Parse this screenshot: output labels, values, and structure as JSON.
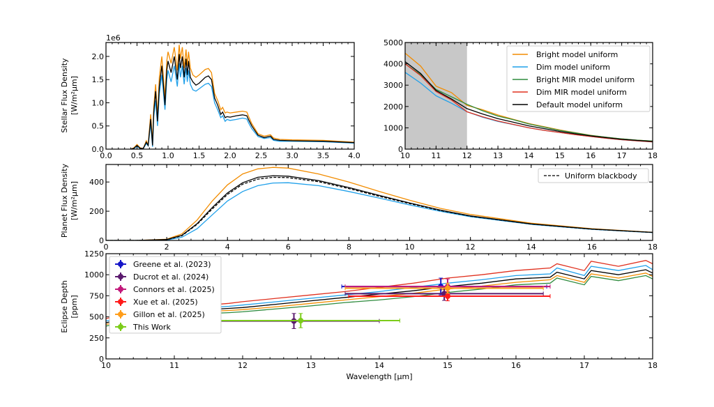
{
  "chart_data": [
    {
      "type": "line",
      "xlim": [
        0,
        4
      ],
      "ylim": [
        0,
        2.3
      ],
      "y_scale_label": "1e6",
      "ylabel": [
        "Stellar Flux Density",
        "[W/m²μm]"
      ],
      "xticks": [
        "0.0",
        "0.5",
        "1.0",
        "1.5",
        "2.0",
        "2.5",
        "3.0",
        "3.5",
        "4.0"
      ],
      "yticks": [
        "0.0",
        "0.5",
        "1.0",
        "1.5",
        "2.0"
      ],
      "x": [
        0.4,
        0.45,
        0.5,
        0.55,
        0.6,
        0.65,
        0.68,
        0.72,
        0.75,
        0.77,
        0.8,
        0.83,
        0.86,
        0.9,
        0.95,
        0.98,
        1.0,
        1.05,
        1.1,
        1.15,
        1.18,
        1.2,
        1.23,
        1.26,
        1.29,
        1.31,
        1.33,
        1.36,
        1.4,
        1.45,
        1.5,
        1.6,
        1.65,
        1.7,
        1.75,
        1.8,
        1.85,
        1.88,
        1.92,
        1.95,
        2.0,
        2.1,
        2.2,
        2.27,
        2.3,
        2.35,
        2.45,
        2.55,
        2.65,
        2.7,
        2.8,
        3.0,
        3.5,
        4.0
      ],
      "series": [
        {
          "color": "#f28c00",
          "values": [
            0,
            0.03,
            0.1,
            0.03,
            0.01,
            0.18,
            0.1,
            0.75,
            0.15,
            0.9,
            1.4,
            0.7,
            1.55,
            2.0,
            1.1,
            1.9,
            2.1,
            1.85,
            2.2,
            1.7,
            2.25,
            1.95,
            2.2,
            1.75,
            2.15,
            1.8,
            2.1,
            1.75,
            1.6,
            1.55,
            1.6,
            1.72,
            1.74,
            1.65,
            1.2,
            1.05,
            0.85,
            0.9,
            0.78,
            0.8,
            0.78,
            0.8,
            0.82,
            0.8,
            0.7,
            0.55,
            0.33,
            0.28,
            0.31,
            0.24,
            0.21,
            0.2,
            0.19,
            0.15
          ]
        },
        {
          "color": "#1fa0ea",
          "values": [
            0,
            0.01,
            0.06,
            0.01,
            0.01,
            0.12,
            0.07,
            0.55,
            0.05,
            0.7,
            1.05,
            0.5,
            1.2,
            1.6,
            0.85,
            1.5,
            1.7,
            1.45,
            1.8,
            1.35,
            1.85,
            1.55,
            1.8,
            1.4,
            1.75,
            1.45,
            1.7,
            1.4,
            1.28,
            1.25,
            1.3,
            1.4,
            1.42,
            1.35,
            1.0,
            0.85,
            0.68,
            0.72,
            0.6,
            0.64,
            0.62,
            0.64,
            0.67,
            0.65,
            0.56,
            0.44,
            0.27,
            0.23,
            0.25,
            0.19,
            0.17,
            0.17,
            0.16,
            0.13
          ]
        },
        {
          "color": "#000000",
          "values": [
            0,
            0.02,
            0.08,
            0.02,
            0.01,
            0.15,
            0.08,
            0.65,
            0.08,
            0.8,
            1.25,
            0.6,
            1.35,
            1.8,
            0.95,
            1.7,
            1.9,
            1.65,
            2.0,
            1.5,
            2.05,
            1.75,
            2.0,
            1.55,
            1.95,
            1.6,
            1.9,
            1.55,
            1.45,
            1.38,
            1.42,
            1.55,
            1.58,
            1.5,
            1.1,
            0.95,
            0.75,
            0.8,
            0.68,
            0.7,
            0.69,
            0.72,
            0.74,
            0.72,
            0.63,
            0.5,
            0.3,
            0.25,
            0.28,
            0.21,
            0.19,
            0.18,
            0.17,
            0.14
          ]
        }
      ]
    },
    {
      "type": "line",
      "xlim": [
        10,
        18
      ],
      "ylim": [
        0,
        5000
      ],
      "xticks": [
        "10",
        "11",
        "12",
        "13",
        "14",
        "15",
        "16",
        "17",
        "18"
      ],
      "yticks": [
        "0",
        "1000",
        "2000",
        "3000",
        "4000",
        "5000"
      ],
      "shaded_region": [
        10,
        12
      ],
      "shaded_color": "#c8c8c8",
      "legend_position": "top-right",
      "x": [
        10,
        10.5,
        11,
        11.5,
        12,
        12.5,
        13,
        13.5,
        14,
        14.5,
        15,
        15.5,
        16,
        16.5,
        17,
        17.5,
        18
      ],
      "series": [
        {
          "name": "Bright model uniform",
          "color": "#f28c00",
          "values": [
            4500,
            3900,
            2950,
            2650,
            2050,
            1850,
            1600,
            1400,
            1200,
            1050,
            900,
            770,
            650,
            560,
            480,
            420,
            380
          ]
        },
        {
          "name": "Dim model uniform",
          "color": "#1fa0ea",
          "values": [
            3600,
            3100,
            2500,
            2150,
            1750,
            1500,
            1300,
            1150,
            1000,
            880,
            780,
            680,
            590,
            510,
            440,
            390,
            340
          ]
        },
        {
          "name": "Bright MIR model uniform",
          "color": "#2e8b3e",
          "values": [
            4000,
            3500,
            2800,
            2450,
            2100,
            1800,
            1550,
            1380,
            1180,
            1030,
            880,
            760,
            640,
            560,
            480,
            420,
            380
          ]
        },
        {
          "name": "Dim MIR model uniform",
          "color": "#e0301e",
          "values": [
            4000,
            3450,
            2700,
            2300,
            1750,
            1520,
            1320,
            1160,
            1000,
            880,
            780,
            680,
            590,
            510,
            440,
            390,
            340
          ]
        },
        {
          "name": "Default model uniform",
          "color": "#000000",
          "values": [
            4100,
            3550,
            2750,
            2350,
            1900,
            1650,
            1430,
            1260,
            1090,
            960,
            830,
            720,
            620,
            540,
            460,
            410,
            360
          ]
        }
      ]
    },
    {
      "type": "line",
      "xlim": [
        0,
        18
      ],
      "ylim": [
        0,
        520
      ],
      "ylabel": [
        "Planet Flux Density",
        "[W/m²μm]"
      ],
      "xticks": [
        "0",
        "2",
        "4",
        "6",
        "8",
        "10",
        "12",
        "14",
        "16",
        "18"
      ],
      "yticks": [
        "0",
        "200",
        "400"
      ],
      "legend_position": "top-right",
      "x": [
        0,
        1,
        2,
        2.5,
        3,
        3.5,
        4,
        4.5,
        5,
        5.5,
        6,
        7,
        8,
        9,
        10,
        11,
        12,
        14,
        16,
        18
      ],
      "series": [
        {
          "color": "#f28c00",
          "values": [
            0,
            0,
            8,
            45,
            140,
            270,
            380,
            455,
            490,
            500,
            495,
            455,
            400,
            335,
            275,
            220,
            178,
            118,
            80,
            56
          ]
        },
        {
          "color": "#1fa0ea",
          "values": [
            0,
            0,
            3,
            22,
            80,
            175,
            270,
            335,
            375,
            393,
            395,
            375,
            335,
            290,
            243,
            200,
            162,
            110,
            76,
            54
          ]
        },
        {
          "color": "#000000",
          "values": [
            0,
            0,
            6,
            35,
            115,
            225,
            325,
            395,
            432,
            443,
            440,
            410,
            362,
            308,
            256,
            208,
            168,
            113,
            78,
            55
          ]
        },
        {
          "name": "Uniform blackbody",
          "color": "#000000",
          "dashed": true,
          "values": [
            0,
            0,
            5,
            32,
            110,
            215,
            315,
            385,
            420,
            432,
            430,
            402,
            355,
            302,
            252,
            205,
            166,
            112,
            77,
            55
          ]
        }
      ]
    },
    {
      "type": "line",
      "xlim": [
        10,
        18
      ],
      "ylim": [
        0,
        1250
      ],
      "xlabel": "Wavelength [μm]",
      "ylabel": [
        "Eclipse Depth",
        "[ppm]"
      ],
      "xticks": [
        "10",
        "11",
        "12",
        "13",
        "14",
        "15",
        "16",
        "17",
        "18"
      ],
      "yticks": [
        "0",
        "250",
        "500",
        "750",
        "1000",
        "1250"
      ],
      "legend_position": "top-left",
      "x": [
        10,
        10.5,
        11,
        11.5,
        11.8,
        12,
        12.5,
        13,
        13.5,
        14,
        14.5,
        15,
        15.5,
        16,
        16.5,
        16.6,
        17,
        17.1,
        17.5,
        17.9,
        18
      ],
      "series": [
        {
          "color": "#e0301e",
          "values": [
            480,
            560,
            610,
            640,
            660,
            680,
            720,
            760,
            800,
            850,
            900,
            960,
            1000,
            1050,
            1080,
            1130,
            1050,
            1160,
            1100,
            1170,
            1130
          ]
        },
        {
          "color": "#1fa0ea",
          "values": [
            450,
            530,
            580,
            610,
            625,
            640,
            680,
            720,
            760,
            800,
            850,
            900,
            940,
            990,
            1010,
            1080,
            990,
            1100,
            1050,
            1110,
            1060
          ]
        },
        {
          "color": "#000000",
          "values": [
            430,
            510,
            560,
            585,
            600,
            610,
            650,
            690,
            730,
            770,
            810,
            860,
            900,
            950,
            970,
            1030,
            950,
            1050,
            1000,
            1060,
            1020
          ]
        },
        {
          "color": "#f28c00",
          "values": [
            410,
            490,
            540,
            565,
            575,
            585,
            620,
            660,
            700,
            740,
            780,
            830,
            865,
            910,
            940,
            990,
            910,
            1010,
            960,
            1020,
            980
          ]
        },
        {
          "color": "#2e8b3e",
          "values": [
            390,
            470,
            515,
            540,
            550,
            560,
            595,
            630,
            670,
            700,
            740,
            790,
            830,
            880,
            900,
            960,
            880,
            980,
            930,
            990,
            950
          ]
        }
      ],
      "errorbars": [
        {
          "name": "Greene et al. (2023)",
          "color": "#1515c8",
          "points": [
            {
              "x": 14.9,
              "y": 860,
              "xerr": [
                13.45,
                16.45
              ],
              "yerr": 100
            }
          ]
        },
        {
          "name": "Ducrot et al. (2024)",
          "color": "#5b1a6e",
          "points": [
            {
              "x": 12.75,
              "y": 450,
              "xerr": [
                11.5,
                14.0
              ],
              "yerr": 90
            },
            {
              "x": 14.95,
              "y": 775,
              "xerr": [
                13.5,
                16.4
              ],
              "yerr": 80
            }
          ]
        },
        {
          "name": "Connors et al. (2025)",
          "color": "#c2187a",
          "points": [
            {
              "x": 15.0,
              "y": 860,
              "xerr": [
                13.5,
                16.5
              ],
              "yerr": 90
            }
          ]
        },
        {
          "name": "Xue et al. (2025)",
          "color": "#ff1a1a",
          "points": [
            {
              "x": 15.0,
              "y": 745,
              "xerr": [
                13.55,
                16.5
              ],
              "yerr": 55
            }
          ]
        },
        {
          "name": "Gillon et al. (2025)",
          "color": "#ff9d1a",
          "points": [
            {
              "x": 15.0,
              "y": 840,
              "xerr": [
                13.5,
                16.4
              ],
              "yerr": 60
            }
          ]
        },
        {
          "name": "This Work",
          "color": "#7ccc1a",
          "points": [
            {
              "x": 12.85,
              "y": 455,
              "xerr": [
                11.4,
                14.3
              ],
              "yerr": 85
            }
          ]
        }
      ]
    }
  ]
}
